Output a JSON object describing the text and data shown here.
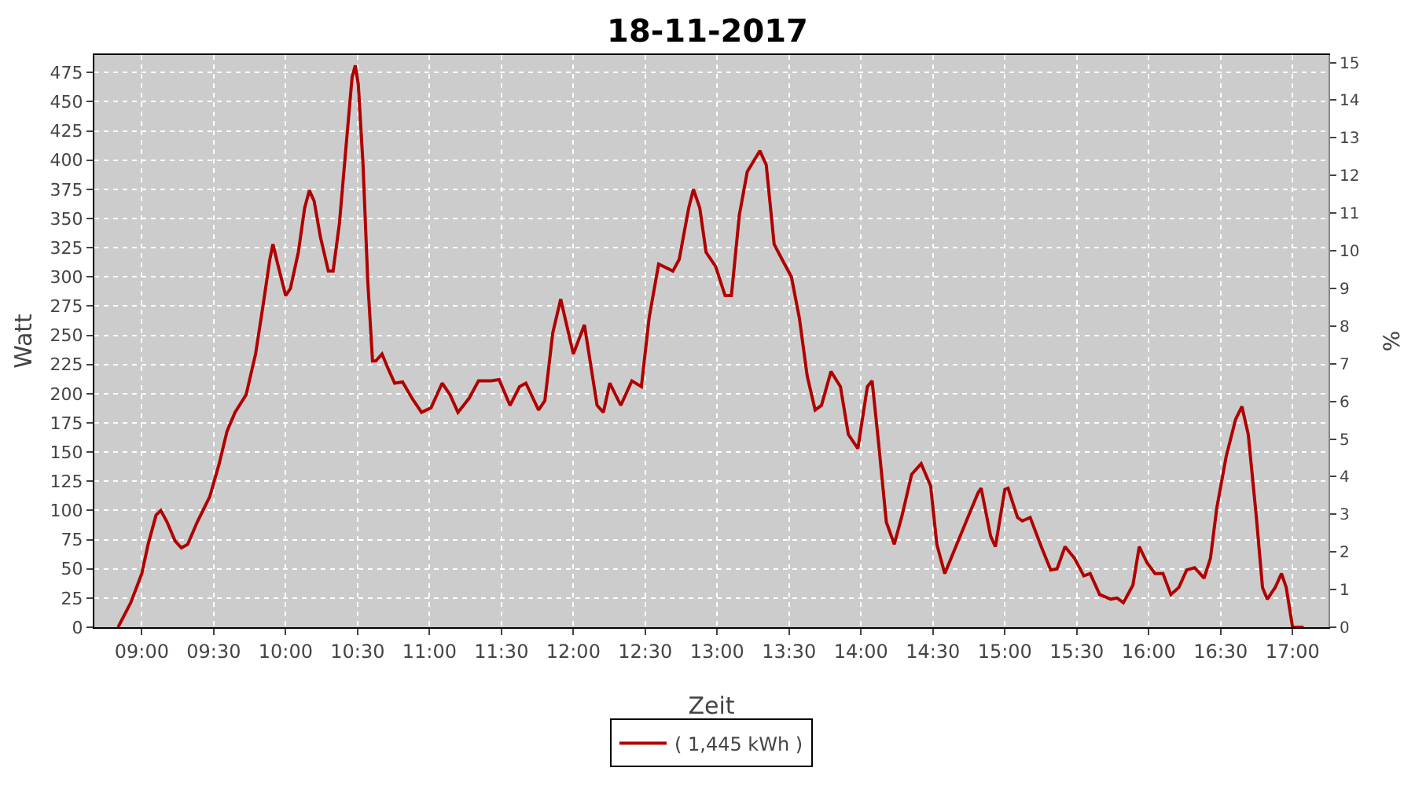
{
  "chart_data": {
    "type": "line",
    "title": "18-11-2017",
    "xlabel": "Zeit",
    "ylabel": "Watt",
    "y2label": "%",
    "xlim": [
      8.67,
      17.25
    ],
    "ylim": [
      0,
      490
    ],
    "y2lim": [
      0,
      15.2
    ],
    "xticks": [
      {
        "value": 9,
        "label": "09:00"
      },
      {
        "value": 9.5,
        "label": "09:30"
      },
      {
        "value": 10,
        "label": "10:00"
      },
      {
        "value": 10.5,
        "label": "10:30"
      },
      {
        "value": 11,
        "label": "11:00"
      },
      {
        "value": 11.5,
        "label": "11:30"
      },
      {
        "value": 12,
        "label": "12:00"
      },
      {
        "value": 12.5,
        "label": "12:30"
      },
      {
        "value": 13,
        "label": "13:00"
      },
      {
        "value": 13.5,
        "label": "13:30"
      },
      {
        "value": 14,
        "label": "14:00"
      },
      {
        "value": 14.5,
        "label": "14:30"
      },
      {
        "value": 15,
        "label": "15:00"
      },
      {
        "value": 15.5,
        "label": "15:30"
      },
      {
        "value": 16,
        "label": "16:00"
      },
      {
        "value": 16.5,
        "label": "16:30"
      },
      {
        "value": 17,
        "label": "17:00"
      }
    ],
    "yticks": [
      0,
      25,
      50,
      75,
      100,
      125,
      150,
      175,
      200,
      225,
      250,
      275,
      300,
      325,
      350,
      375,
      400,
      425,
      450,
      475
    ],
    "y2ticks": [
      0,
      1,
      2,
      3,
      4,
      5,
      6,
      7,
      8,
      9,
      10,
      11,
      12,
      13,
      14,
      15
    ],
    "grid": true,
    "legend": "bottom",
    "marker": "none",
    "line_style": "solid",
    "x": [
      8.835,
      8.923,
      9.0,
      9.044,
      9.099,
      9.132,
      9.176,
      9.231,
      9.275,
      9.319,
      9.385,
      9.473,
      9.538,
      9.593,
      9.648,
      9.725,
      9.791,
      9.846,
      9.89,
      9.912,
      9.945,
      10.0,
      10.033,
      10.088,
      10.132,
      10.165,
      10.198,
      10.242,
      10.297,
      10.33,
      10.374,
      10.418,
      10.462,
      10.484,
      10.505,
      10.538,
      10.571,
      10.604,
      10.626,
      10.67,
      10.714,
      10.758,
      10.813,
      10.879,
      10.945,
      11.011,
      11.088,
      11.143,
      11.198,
      11.275,
      11.341,
      11.429,
      11.484,
      11.56,
      11.626,
      11.67,
      11.758,
      11.802,
      11.857,
      11.912,
      12.0,
      12.077,
      12.165,
      12.209,
      12.253,
      12.33,
      12.407,
      12.473,
      12.527,
      12.593,
      12.692,
      12.736,
      12.802,
      12.835,
      12.879,
      12.923,
      12.989,
      13.055,
      13.099,
      13.154,
      13.209,
      13.297,
      13.341,
      13.396,
      13.451,
      13.516,
      13.571,
      13.626,
      13.681,
      13.725,
      13.791,
      13.857,
      13.912,
      13.978,
      14.044,
      14.077,
      14.121,
      14.176,
      14.231,
      14.286,
      14.352,
      14.418,
      14.484,
      14.527,
      14.582,
      14.659,
      14.736,
      14.813,
      14.835,
      14.901,
      14.934,
      15.0,
      15.022,
      15.088,
      15.121,
      15.176,
      15.253,
      15.319,
      15.363,
      15.418,
      15.484,
      15.549,
      15.593,
      15.659,
      15.736,
      15.78,
      15.824,
      15.89,
      15.934,
      15.989,
      16.044,
      16.099,
      16.154,
      16.209,
      16.264,
      16.319,
      16.385,
      16.429,
      16.473,
      16.538,
      16.604,
      16.648,
      16.692,
      16.747,
      16.791,
      16.824,
      16.879,
      16.923,
      16.956,
      17.0,
      17.077
    ],
    "series": [
      {
        "name": "( 1,445 kWh )",
        "color": "#b00000",
        "values": [
          0,
          21,
          46,
          71,
          96,
          100,
          90,
          74,
          68,
          71,
          90,
          112,
          140,
          168,
          184,
          199,
          234,
          278,
          315,
          328,
          311,
          284,
          290,
          321,
          359,
          374,
          365,
          334,
          305,
          305,
          346,
          409,
          471,
          481,
          465,
          396,
          296,
          228,
          228,
          234,
          221,
          209,
          210,
          196,
          184,
          188,
          209,
          199,
          184,
          196,
          211,
          211,
          212,
          190,
          206,
          209,
          186,
          194,
          252,
          281,
          234,
          259,
          190,
          184,
          209,
          190,
          211,
          206,
          265,
          311,
          305,
          315,
          359,
          375,
          359,
          321,
          309,
          284,
          284,
          353,
          390,
          408,
          396,
          328,
          315,
          300,
          265,
          215,
          186,
          190,
          219,
          206,
          165,
          153,
          206,
          211,
          159,
          90,
          71,
          96,
          131,
          140,
          121,
          71,
          46,
          69,
          92,
          115,
          119,
          78,
          69,
          118,
          119,
          94,
          91,
          94,
          69,
          49,
          50,
          69,
          59,
          44,
          46,
          28,
          24,
          25,
          21,
          36,
          69,
          55,
          46,
          46,
          28,
          34,
          49,
          51,
          42,
          59,
          102,
          146,
          178,
          189,
          165,
          96,
          34,
          24,
          34,
          46,
          34,
          0,
          0
        ]
      }
    ]
  }
}
